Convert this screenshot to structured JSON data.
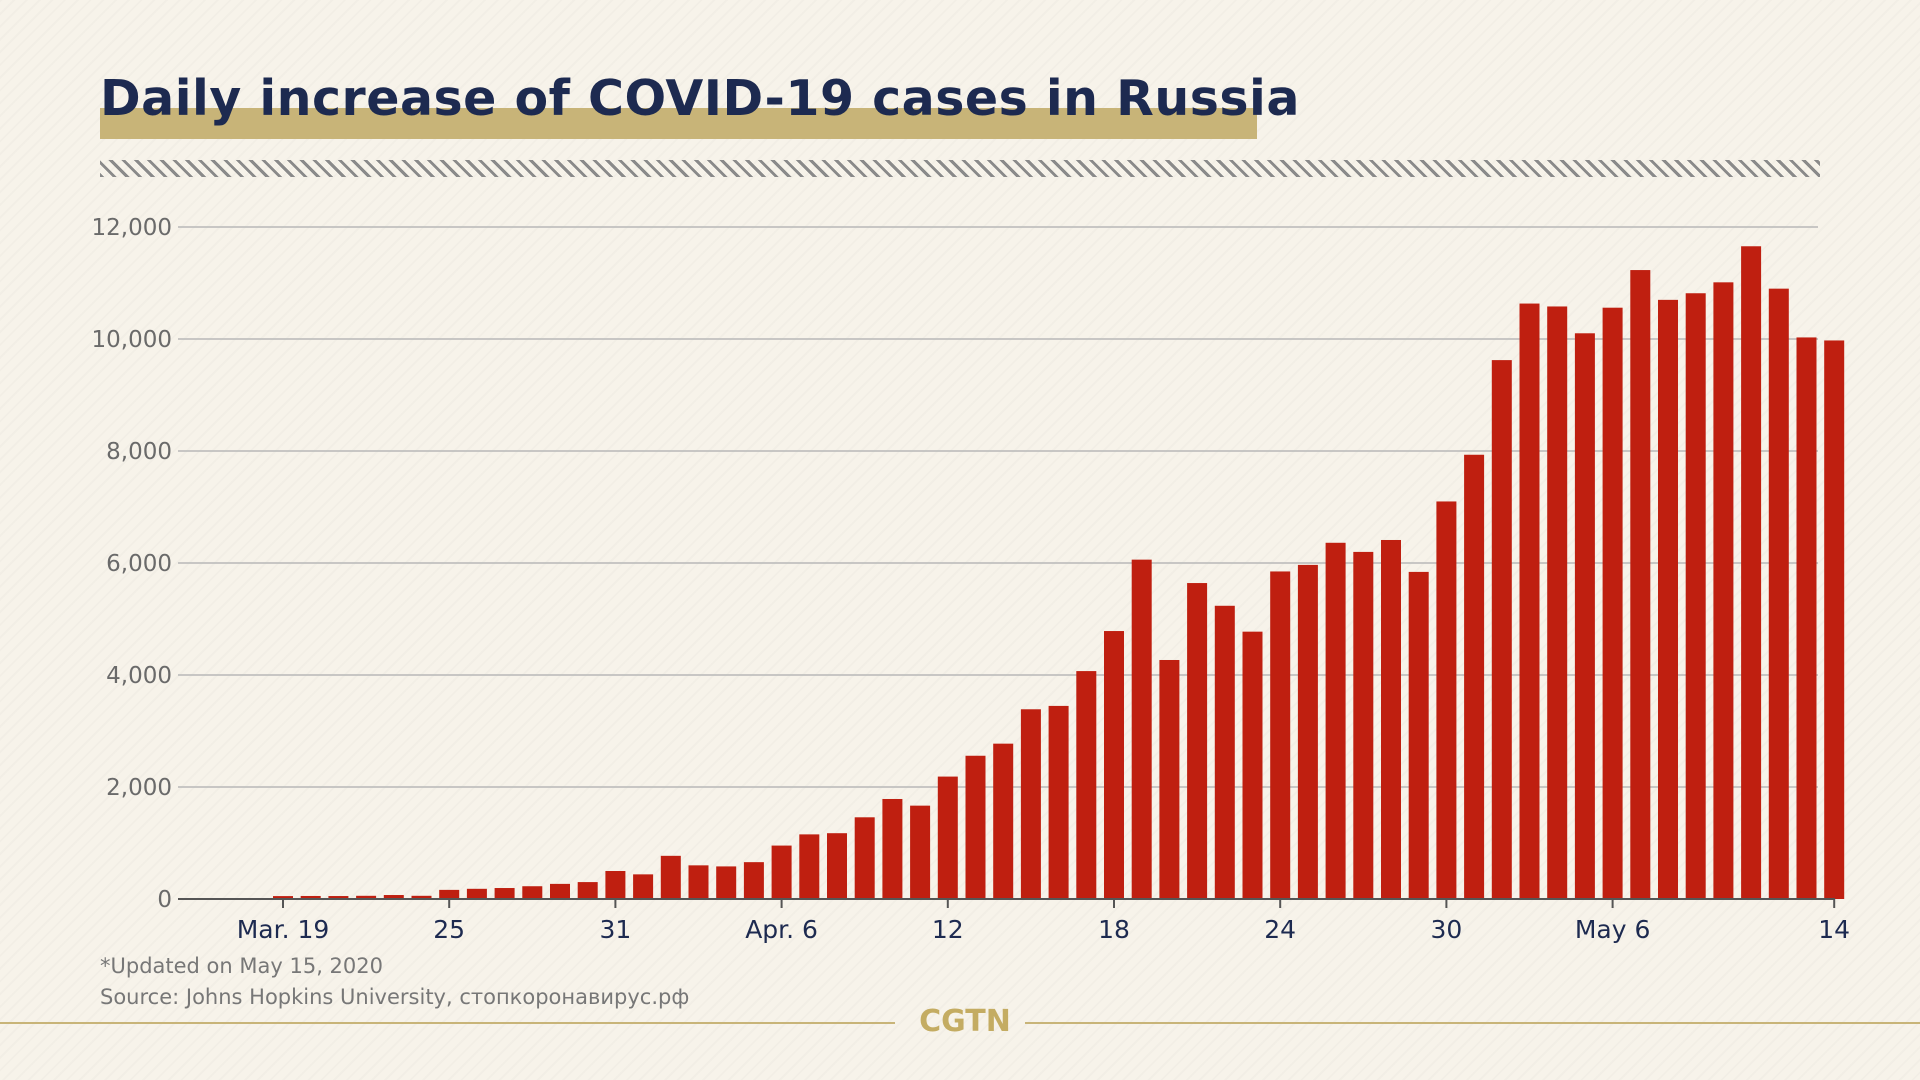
{
  "header": {
    "title": "Daily increase of COVID-19 cases in Russia"
  },
  "notes": {
    "updated": "*Updated on May 15, 2020",
    "source": "Source: Johns Hopkins University, стопкоронавирус.рф"
  },
  "logo": {
    "text": "CGTN"
  },
  "colors": {
    "bar": "#bf1f10",
    "title": "#1d2a50",
    "title_band": "#c8b478",
    "gridline": "#b8b8b8",
    "background": "#f7f3ea",
    "logo": "#c4ac62"
  },
  "chart_data": {
    "type": "bar",
    "title": "Daily increase of COVID-19 cases in Russia",
    "xlabel": "",
    "ylabel": "",
    "ylim": [
      0,
      12000
    ],
    "yticks": [
      0,
      2000,
      4000,
      6000,
      8000,
      10000,
      12000
    ],
    "ytick_labels": [
      "0",
      "2,000",
      "4,000",
      "6,000",
      "8,000",
      "10,000",
      "12,000"
    ],
    "grid": true,
    "xtick_labels": [
      {
        "index": 0,
        "label": "Mar. 19"
      },
      {
        "index": 6,
        "label": "25"
      },
      {
        "index": 12,
        "label": "31"
      },
      {
        "index": 18,
        "label": "Apr. 6"
      },
      {
        "index": 24,
        "label": "12"
      },
      {
        "index": 30,
        "label": "18"
      },
      {
        "index": 36,
        "label": "24"
      },
      {
        "index": 42,
        "label": "30"
      },
      {
        "index": 48,
        "label": "May 6"
      },
      {
        "index": 56,
        "label": "14"
      }
    ],
    "categories": [
      "Mar 19",
      "Mar 20",
      "Mar 21",
      "Mar 22",
      "Mar 23",
      "Mar 24",
      "Mar 25",
      "Mar 26",
      "Mar 27",
      "Mar 28",
      "Mar 29",
      "Mar 30",
      "Mar 31",
      "Apr 1",
      "Apr 2",
      "Apr 3",
      "Apr 4",
      "Apr 5",
      "Apr 6",
      "Apr 7",
      "Apr 8",
      "Apr 9",
      "Apr 10",
      "Apr 11",
      "Apr 12",
      "Apr 13",
      "Apr 14",
      "Apr 15",
      "Apr 16",
      "Apr 17",
      "Apr 18",
      "Apr 19",
      "Apr 20",
      "Apr 21",
      "Apr 22",
      "Apr 23",
      "Apr 24",
      "Apr 25",
      "Apr 26",
      "Apr 27",
      "Apr 28",
      "Apr 29",
      "Apr 30",
      "May 1",
      "May 2",
      "May 3",
      "May 4",
      "May 5",
      "May 6",
      "May 7",
      "May 8",
      "May 9",
      "May 10",
      "May 11",
      "May 12",
      "May 13",
      "May 14"
    ],
    "values": [
      52,
      54,
      53,
      57,
      71,
      57,
      163,
      182,
      196,
      228,
      270,
      302,
      500,
      440,
      771,
      601,
      582,
      658,
      954,
      1154,
      1175,
      1459,
      1786,
      1667,
      2186,
      2558,
      2774,
      3388,
      3448,
      4070,
      4785,
      6060,
      4268,
      5642,
      5236,
      4774,
      5849,
      5966,
      6361,
      6198,
      6411,
      5841,
      7099,
      7933,
      9623,
      10633,
      10581,
      10102,
      10559,
      11231,
      10699,
      10817,
      11012,
      11656,
      10899,
      10028,
      9974
    ]
  }
}
